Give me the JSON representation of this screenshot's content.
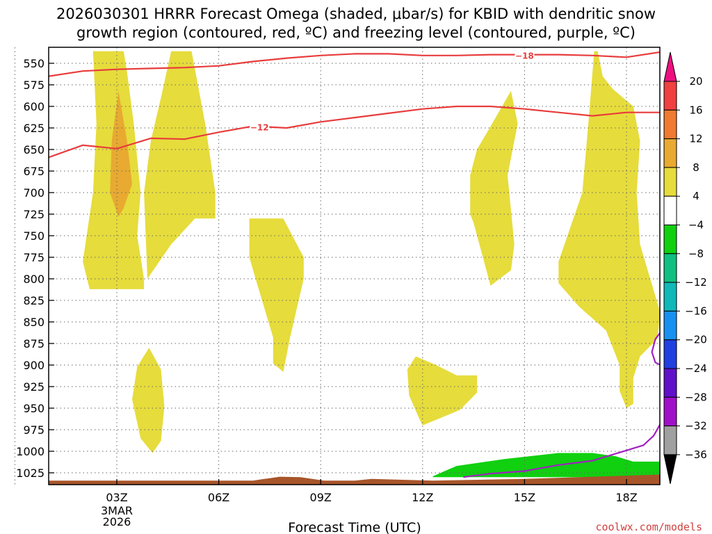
{
  "chart_data": {
    "type": "time-height",
    "title_line1": "2026030301 HRRR Forecast Omega (shaded, μbar/s) for KBID with dendritic snow",
    "title_line2": "growth region (contoured, red, ºC) and freezing level (contoured, purple, ºC)",
    "xlabel": "Forecast Time (UTC)",
    "x_date_label": [
      "3MAR",
      "2026"
    ],
    "credit": "coolwx.com/models",
    "x_hours": [
      0,
      3,
      6,
      9,
      12,
      15,
      18
    ],
    "x_tick_labels": [
      "03Z",
      "06Z",
      "09Z",
      "12Z",
      "15Z",
      "18Z"
    ],
    "x_tick_hours": [
      3,
      6,
      9,
      12,
      15,
      18
    ],
    "xlim": [
      1,
      19
    ],
    "y_levels_mb": [
      550,
      575,
      600,
      625,
      650,
      675,
      700,
      725,
      750,
      775,
      800,
      825,
      850,
      875,
      900,
      925,
      950,
      975,
      1000,
      1025
    ],
    "ylim": [
      536,
      1040
    ],
    "colorbar": {
      "labels": [
        "20",
        "16",
        "12",
        "8",
        "4",
        "-4",
        "-8",
        "-12",
        "-16",
        "-20",
        "-24",
        "-28",
        "-32",
        "-36"
      ],
      "colors": [
        "#ee1080",
        "#f04040",
        "#f07a30",
        "#e8aa30",
        "#e6dc3c",
        "#ffffff",
        "#10d010",
        "#10c080",
        "#10b8b8",
        "#1890f0",
        "#2040e0",
        "#6010c8",
        "#a010c8",
        "#a0a0a0",
        "#000000"
      ]
    },
    "contours": [
      {
        "label": "-18",
        "color": "#e83c3c",
        "points": [
          [
            1,
            565
          ],
          [
            2,
            559
          ],
          [
            3,
            557
          ],
          [
            4,
            556
          ],
          [
            5,
            555
          ],
          [
            6,
            553
          ],
          [
            7,
            548
          ],
          [
            8,
            544
          ],
          [
            9,
            541
          ],
          [
            10,
            539
          ],
          [
            11,
            539
          ],
          [
            12,
            541
          ],
          [
            13,
            541
          ],
          [
            14,
            540
          ],
          [
            15,
            540
          ],
          [
            16,
            540
          ],
          [
            17,
            541
          ],
          [
            18,
            543
          ],
          [
            19,
            537
          ]
        ]
      },
      {
        "label": "-12",
        "color": "#e83c3c",
        "points": [
          [
            1,
            659
          ],
          [
            2,
            645
          ],
          [
            3,
            649
          ],
          [
            4,
            637
          ],
          [
            5,
            638
          ],
          [
            6,
            630
          ],
          [
            7,
            623
          ],
          [
            8,
            625
          ],
          [
            9,
            618
          ],
          [
            10,
            613
          ],
          [
            11,
            608
          ],
          [
            12,
            603
          ],
          [
            13,
            600
          ],
          [
            14,
            600
          ],
          [
            15,
            603
          ],
          [
            16,
            607
          ],
          [
            17,
            611
          ],
          [
            18,
            607
          ],
          [
            19,
            607
          ]
        ]
      },
      {
        "label": "",
        "color": "#a020c0",
        "points": [
          [
            13.2,
            1030
          ],
          [
            14,
            1026
          ],
          [
            15,
            1023
          ],
          [
            16,
            1016
          ],
          [
            17,
            1011
          ],
          [
            18,
            999
          ],
          [
            18.5,
            993
          ],
          [
            18.8,
            982
          ],
          [
            19,
            968
          ]
        ]
      },
      {
        "label": "",
        "color": "#a020c0",
        "points": [
          [
            19,
            862
          ],
          [
            18.85,
            870
          ],
          [
            18.75,
            885
          ],
          [
            18.85,
            897
          ],
          [
            19,
            900
          ]
        ]
      }
    ],
    "omega_regions": [
      {
        "value_range": [
          4,
          8
        ],
        "color": "#e6dc3c",
        "points": [
          [
            2.3,
            536
          ],
          [
            3.2,
            536
          ],
          [
            3.3,
            560
          ],
          [
            3.5,
            620
          ],
          [
            3.7,
            700
          ],
          [
            3.6,
            750
          ],
          [
            3.8,
            800
          ],
          [
            3.8,
            812
          ],
          [
            3,
            812
          ],
          [
            2.2,
            812
          ],
          [
            2,
            780
          ],
          [
            2.3,
            700
          ],
          [
            2.4,
            620
          ]
        ]
      },
      {
        "value_range": [
          4,
          8
        ],
        "color": "#e6dc3c",
        "points": [
          [
            4.6,
            536
          ],
          [
            5.2,
            536
          ],
          [
            5.6,
            620
          ],
          [
            5.9,
            700
          ],
          [
            5.9,
            730
          ],
          [
            5.3,
            730
          ],
          [
            4.6,
            760
          ],
          [
            3.9,
            800
          ],
          [
            3.8,
            700
          ],
          [
            4,
            640
          ],
          [
            4.3,
            590
          ]
        ]
      },
      {
        "value_range": [
          8,
          12
        ],
        "color": "#e8aa30",
        "points": [
          [
            3.05,
            582
          ],
          [
            3.3,
            640
          ],
          [
            3.45,
            690
          ],
          [
            3.2,
            718
          ],
          [
            3.05,
            728
          ],
          [
            2.8,
            700
          ],
          [
            2.85,
            640
          ]
        ]
      },
      {
        "value_range": [
          4,
          8
        ],
        "color": "#e6dc3c",
        "points": [
          [
            3.95,
            880
          ],
          [
            4.3,
            905
          ],
          [
            4.4,
            948
          ],
          [
            4.3,
            988
          ],
          [
            4.05,
            1002
          ],
          [
            3.7,
            985
          ],
          [
            3.45,
            940
          ],
          [
            3.6,
            902
          ]
        ]
      },
      {
        "value_range": [
          4,
          8
        ],
        "color": "#e6dc3c",
        "points": [
          [
            6.9,
            730
          ],
          [
            7.9,
            730
          ],
          [
            8.5,
            775
          ],
          [
            8.5,
            800
          ],
          [
            8.1,
            868
          ],
          [
            7.9,
            908
          ],
          [
            7.6,
            898
          ],
          [
            7.6,
            868
          ],
          [
            7.1,
            802
          ],
          [
            6.9,
            775
          ]
        ]
      },
      {
        "value_range": [
          4,
          8
        ],
        "color": "#e6dc3c",
        "points": [
          [
            11.8,
            890
          ],
          [
            12.4,
            900
          ],
          [
            13,
            912
          ],
          [
            13.6,
            912
          ],
          [
            13.6,
            932
          ],
          [
            13.1,
            952
          ],
          [
            12,
            970
          ],
          [
            11.9,
            962
          ],
          [
            11.6,
            935
          ],
          [
            11.55,
            905
          ]
        ]
      },
      {
        "value_range": [
          4,
          8
        ],
        "color": "#e6dc3c",
        "points": [
          [
            14.6,
            582
          ],
          [
            14.8,
            620
          ],
          [
            14.5,
            680
          ],
          [
            14.7,
            760
          ],
          [
            14.6,
            790
          ],
          [
            14,
            808
          ],
          [
            13.5,
            735
          ],
          [
            13.4,
            725
          ],
          [
            13.4,
            680
          ],
          [
            13.6,
            650
          ],
          [
            13.9,
            630
          ]
        ]
      },
      {
        "value_range": [
          4,
          8
        ],
        "color": "#e6dc3c",
        "points": [
          [
            17.05,
            536
          ],
          [
            17.15,
            536
          ],
          [
            17.3,
            565
          ],
          [
            17.6,
            580
          ],
          [
            18.2,
            600
          ],
          [
            18.4,
            640
          ],
          [
            18.3,
            700
          ],
          [
            18.4,
            760
          ],
          [
            18.7,
            800
          ],
          [
            19,
            840
          ],
          [
            18.9,
            870
          ],
          [
            18.4,
            890
          ],
          [
            18.2,
            915
          ],
          [
            18.2,
            945
          ],
          [
            18,
            950
          ],
          [
            17.8,
            930
          ],
          [
            17.8,
            900
          ],
          [
            17.4,
            860
          ],
          [
            16.6,
            832
          ],
          [
            16,
            805
          ],
          [
            16,
            780
          ],
          [
            16.7,
            700
          ],
          [
            16.9,
            610
          ]
        ]
      },
      {
        "value_range": [
          -8,
          -4
        ],
        "color": "#10d010",
        "points": [
          [
            12.3,
            1029
          ],
          [
            13,
            1017
          ],
          [
            14.4,
            1009
          ],
          [
            16,
            1002
          ],
          [
            17,
            1002
          ],
          [
            17.7,
            1006
          ],
          [
            18.2,
            1012
          ],
          [
            19,
            1012
          ],
          [
            19,
            1027
          ],
          [
            17.9,
            1030
          ],
          [
            12.3,
            1030
          ]
        ]
      },
      {
        "value_range": [
          "terrain"
        ],
        "color": "#a8552a",
        "points": [
          [
            1,
            1034
          ],
          [
            7,
            1034
          ],
          [
            7.8,
            1029.5
          ],
          [
            8.4,
            1030
          ],
          [
            9.1,
            1034
          ],
          [
            10,
            1034
          ],
          [
            10.5,
            1032
          ],
          [
            12.3,
            1034
          ],
          [
            15,
            1032
          ],
          [
            19,
            1027
          ],
          [
            19,
            1040
          ],
          [
            1,
            1040
          ]
        ]
      }
    ]
  }
}
